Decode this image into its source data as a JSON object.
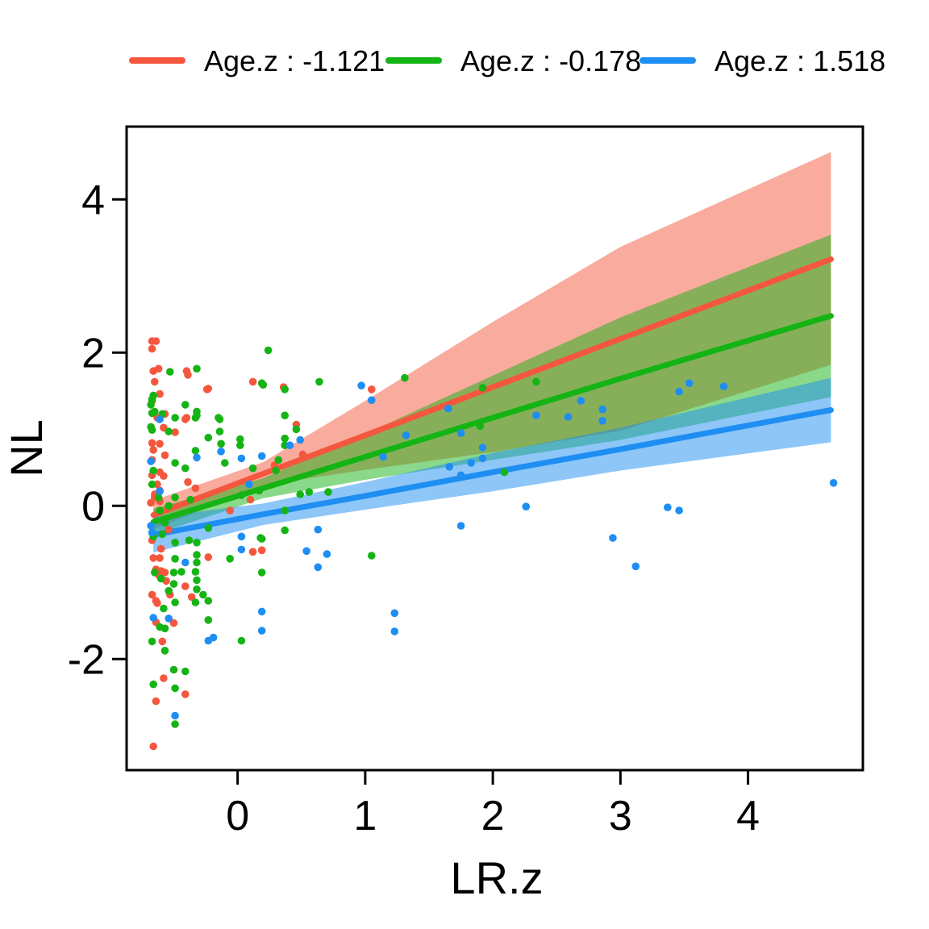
{
  "chart_data": {
    "type": "scatter",
    "title": "",
    "xlabel": "LR.z",
    "ylabel": "NL",
    "xlim": [
      -0.87,
      4.9
    ],
    "ylim": [
      -3.45,
      4.95
    ],
    "x_ticks": [
      "0",
      "1",
      "2",
      "3",
      "4"
    ],
    "x_tick_values": [
      0,
      1,
      2,
      3,
      4
    ],
    "y_ticks": [
      "-2",
      "0",
      "2",
      "4"
    ],
    "y_tick_values": [
      -2,
      0,
      2,
      4
    ],
    "grid": false,
    "legend_position": "top-center",
    "band_opacity": 0.5,
    "frame_color": "#000000",
    "background": "#ffffff",
    "u_knots": [
      -0.66,
      0.2,
      1.0,
      2.0,
      3.0,
      4.65
    ],
    "series": [
      {
        "name": "Age.z : -1.121",
        "color": "#f4573d",
        "line": [
          -0.12,
          0.42,
          0.92,
          1.55,
          2.18,
          3.22
        ],
        "upper": [
          0.07,
          0.57,
          1.37,
          2.4,
          3.38,
          4.62
        ],
        "lower": [
          -0.31,
          0.27,
          0.47,
          0.7,
          0.98,
          1.84
        ],
        "points": [
          [
            -0.67,
            2.15
          ],
          [
            -0.64,
            2.15
          ],
          [
            -0.67,
            2.05
          ],
          [
            -0.66,
            1.76
          ],
          [
            -0.62,
            1.79
          ],
          [
            -0.4,
            1.76
          ],
          [
            -0.39,
            1.71
          ],
          [
            -0.65,
            1.62
          ],
          [
            -0.23,
            1.53
          ],
          [
            0.12,
            1.62
          ],
          [
            0.36,
            1.55
          ],
          [
            -0.61,
            1.46
          ],
          [
            -0.67,
            1.37
          ],
          [
            1.05,
            1.52
          ],
          [
            -0.24,
            1.52
          ],
          [
            -0.63,
            1.15
          ],
          [
            -0.4,
            1.15
          ],
          [
            -0.57,
            1.2
          ],
          [
            -0.41,
            1.13
          ],
          [
            -0.58,
            1.02
          ],
          [
            -0.49,
            0.96
          ],
          [
            0.46,
            1.06
          ],
          [
            -0.67,
            0.82
          ],
          [
            -0.66,
            0.73
          ],
          [
            -0.61,
            0.81
          ],
          [
            -0.57,
            0.66
          ],
          [
            -0.67,
            0.6
          ],
          [
            -0.61,
            0.44
          ],
          [
            -0.58,
            0.39
          ],
          [
            -0.63,
            0.28
          ],
          [
            -0.67,
            0.4
          ],
          [
            -0.61,
            0.2
          ],
          [
            -0.65,
            0.11
          ],
          [
            -0.68,
            0.04
          ],
          [
            -0.65,
            0.15
          ],
          [
            -0.61,
            0.06
          ],
          [
            -0.39,
            0.31
          ],
          [
            -0.33,
            0.23
          ],
          [
            -0.06,
            -0.06
          ],
          [
            0.1,
            0.08
          ],
          [
            0.29,
            0.53
          ],
          [
            0.51,
            0.67
          ],
          [
            -0.54,
            -0.31
          ],
          [
            -0.6,
            -0.56
          ],
          [
            -0.67,
            -0.45
          ],
          [
            -0.66,
            -0.68
          ],
          [
            -0.61,
            -0.68
          ],
          [
            -0.23,
            -0.67
          ],
          [
            0.12,
            -0.6
          ],
          [
            0.19,
            -0.58
          ],
          [
            -0.64,
            -0.83
          ],
          [
            -0.6,
            -0.85
          ],
          [
            -0.57,
            -0.87
          ],
          [
            -0.62,
            -0.9
          ],
          [
            -0.56,
            -0.98
          ],
          [
            -0.41,
            -1.05
          ],
          [
            -0.67,
            -1.16
          ],
          [
            -0.64,
            -1.24
          ],
          [
            -0.63,
            -1.27
          ],
          [
            -0.53,
            -1.16
          ],
          [
            -0.36,
            -1.19
          ],
          [
            -0.5,
            -1.53
          ],
          [
            -0.64,
            -1.52
          ],
          [
            -0.59,
            -1.77
          ],
          [
            -0.58,
            -2.25
          ],
          [
            -0.41,
            -2.46
          ],
          [
            -0.64,
            -2.55
          ],
          [
            -0.66,
            -3.14
          ]
        ]
      },
      {
        "name": "Age.z : -0.178",
        "color": "#15b415",
        "line": [
          -0.21,
          0.23,
          0.64,
          1.15,
          1.66,
          2.48
        ],
        "upper": [
          -0.04,
          0.36,
          0.94,
          1.7,
          2.46,
          3.54
        ],
        "lower": [
          -0.38,
          0.1,
          0.34,
          0.6,
          0.86,
          1.42
        ],
        "points": [
          [
            0.24,
            2.03
          ],
          [
            -0.53,
            1.75
          ],
          [
            -0.32,
            1.79
          ],
          [
            0.2,
            1.58
          ],
          [
            0.64,
            1.62
          ],
          [
            0.19,
            1.6
          ],
          [
            0.37,
            1.52
          ],
          [
            -0.66,
            1.44
          ],
          [
            -0.67,
            1.39
          ],
          [
            -0.68,
            1.32
          ],
          [
            -0.65,
            1.23
          ],
          [
            -0.59,
            1.2
          ],
          [
            -0.49,
            1.15
          ],
          [
            -0.41,
            1.32
          ],
          [
            -0.32,
            1.23
          ],
          [
            -0.32,
            1.18
          ],
          [
            -0.33,
            1.15
          ],
          [
            -0.15,
            1.15
          ],
          [
            -0.14,
            1.13
          ],
          [
            0.37,
            1.18
          ],
          [
            -0.67,
            1.21
          ],
          [
            -0.68,
            1.03
          ],
          [
            -0.67,
            0.99
          ],
          [
            -0.54,
            0.97
          ],
          [
            -0.23,
            0.89
          ],
          [
            -0.14,
            0.97
          ],
          [
            -0.13,
            0.81
          ],
          [
            0.02,
            0.87
          ],
          [
            0.02,
            0.79
          ],
          [
            0.12,
            0.49
          ],
          [
            0.3,
            0.46
          ],
          [
            0.32,
            0.6
          ],
          [
            0.37,
            0.88
          ],
          [
            0.37,
            0.79
          ],
          [
            0.46,
            1.0
          ],
          [
            -0.1,
            0.56
          ],
          [
            -0.49,
            0.56
          ],
          [
            -0.41,
            0.49
          ],
          [
            -0.33,
            0.72
          ],
          [
            -0.62,
            0.11
          ],
          [
            -0.49,
            0.11
          ],
          [
            -0.37,
            0.08
          ],
          [
            -0.54,
            0.0
          ],
          [
            -0.61,
            -0.06
          ],
          [
            -0.57,
            -0.22
          ],
          [
            -0.67,
            0.28
          ],
          [
            -0.66,
            0.46
          ],
          [
            0.17,
            0.2
          ],
          [
            0.03,
            0.14
          ],
          [
            0.18,
            -0.42
          ],
          [
            0.56,
            0.18
          ],
          [
            0.71,
            0.18
          ],
          [
            0.49,
            0.15
          ],
          [
            0.37,
            -0.06
          ],
          [
            0.37,
            -0.32
          ],
          [
            -0.23,
            -0.29
          ],
          [
            -0.38,
            -0.45
          ],
          [
            -0.59,
            -0.37
          ],
          [
            -0.66,
            -0.4
          ],
          [
            -0.49,
            -0.48
          ],
          [
            -0.32,
            -0.48
          ],
          [
            -0.49,
            -0.69
          ],
          [
            -0.32,
            -0.64
          ],
          [
            -0.32,
            -0.74
          ],
          [
            -0.06,
            -0.69
          ],
          [
            0.19,
            -0.43
          ],
          [
            0.19,
            -0.87
          ],
          [
            -0.65,
            -0.87
          ],
          [
            -0.6,
            -0.95
          ],
          [
            -0.5,
            -0.87
          ],
          [
            -0.44,
            -0.86
          ],
          [
            -0.5,
            -1.02
          ],
          [
            -0.33,
            -0.86
          ],
          [
            -0.32,
            -0.97
          ],
          [
            -0.54,
            -1.11
          ],
          [
            -0.49,
            -1.26
          ],
          [
            -0.58,
            -1.34
          ],
          [
            -0.33,
            -1.26
          ],
          [
            -0.27,
            -1.16
          ],
          [
            -0.32,
            -1.09
          ],
          [
            -0.23,
            -1.24
          ],
          [
            -0.23,
            -1.49
          ],
          [
            -0.61,
            -1.58
          ],
          [
            -0.57,
            -1.6
          ],
          [
            -0.67,
            -1.77
          ],
          [
            -0.57,
            -1.89
          ],
          [
            0.03,
            -1.76
          ],
          [
            -0.5,
            -2.14
          ],
          [
            -0.41,
            -2.16
          ],
          [
            -0.66,
            -2.33
          ],
          [
            -0.49,
            -2.38
          ],
          [
            -0.49,
            -2.85
          ],
          [
            1.31,
            1.67
          ],
          [
            1.92,
            1.54
          ],
          [
            2.34,
            1.62
          ],
          [
            1.9,
            1.04
          ],
          [
            2.09,
            0.44
          ],
          [
            1.05,
            -0.65
          ]
        ]
      },
      {
        "name": "Age.z : 1.518",
        "color": "#1e8ef2",
        "line": [
          -0.38,
          -0.11,
          0.13,
          0.44,
          0.74,
          1.25
        ],
        "upper": [
          -0.15,
          0.03,
          0.31,
          0.69,
          1.02,
          1.67
        ],
        "lower": [
          -0.61,
          -0.25,
          -0.05,
          0.19,
          0.46,
          0.83
        ],
        "points": [
          [
            -0.61,
            1.13
          ],
          [
            -0.68,
            0.58
          ],
          [
            -0.68,
            -0.26
          ],
          [
            -0.67,
            -0.35
          ],
          [
            -0.61,
            0.19
          ],
          [
            0.03,
            0.62
          ],
          [
            0.09,
            0.28
          ],
          [
            -0.13,
            0.71
          ],
          [
            0.19,
            0.65
          ],
          [
            0.41,
            0.79
          ],
          [
            0.49,
            0.86
          ],
          [
            -0.32,
            0.63
          ],
          [
            -0.41,
            -0.74
          ],
          [
            0.03,
            -0.57
          ],
          [
            0.03,
            -0.4
          ],
          [
            0.54,
            -0.59
          ],
          [
            0.7,
            -0.63
          ],
          [
            0.63,
            -0.31
          ],
          [
            0.63,
            -0.8
          ],
          [
            0.19,
            -1.38
          ],
          [
            0.19,
            -1.63
          ],
          [
            1.23,
            -1.4
          ],
          [
            1.23,
            -1.64
          ],
          [
            -0.23,
            -1.76
          ],
          [
            -0.19,
            -1.72
          ],
          [
            -0.66,
            -1.46
          ],
          [
            -0.54,
            -1.47
          ],
          [
            -0.49,
            -2.74
          ],
          [
            0.97,
            1.57
          ],
          [
            1.05,
            1.38
          ],
          [
            1.14,
            0.64
          ],
          [
            1.92,
            0.76
          ],
          [
            1.92,
            0.62
          ],
          [
            1.66,
            0.51
          ],
          [
            1.83,
            0.56
          ],
          [
            1.75,
            0.95
          ],
          [
            1.32,
            0.92
          ],
          [
            1.75,
            0.4
          ],
          [
            1.65,
            1.27
          ],
          [
            2.26,
            -0.01
          ],
          [
            1.75,
            -0.26
          ],
          [
            2.94,
            -0.42
          ],
          [
            2.34,
            1.18
          ],
          [
            2.59,
            1.16
          ],
          [
            2.69,
            1.37
          ],
          [
            2.86,
            1.26
          ],
          [
            2.86,
            1.11
          ],
          [
            3.46,
            1.49
          ],
          [
            3.54,
            1.6
          ],
          [
            3.81,
            1.56
          ],
          [
            3.37,
            -0.02
          ],
          [
            3.46,
            -0.06
          ],
          [
            3.12,
            -0.79
          ],
          [
            4.67,
            0.3
          ]
        ]
      }
    ]
  }
}
